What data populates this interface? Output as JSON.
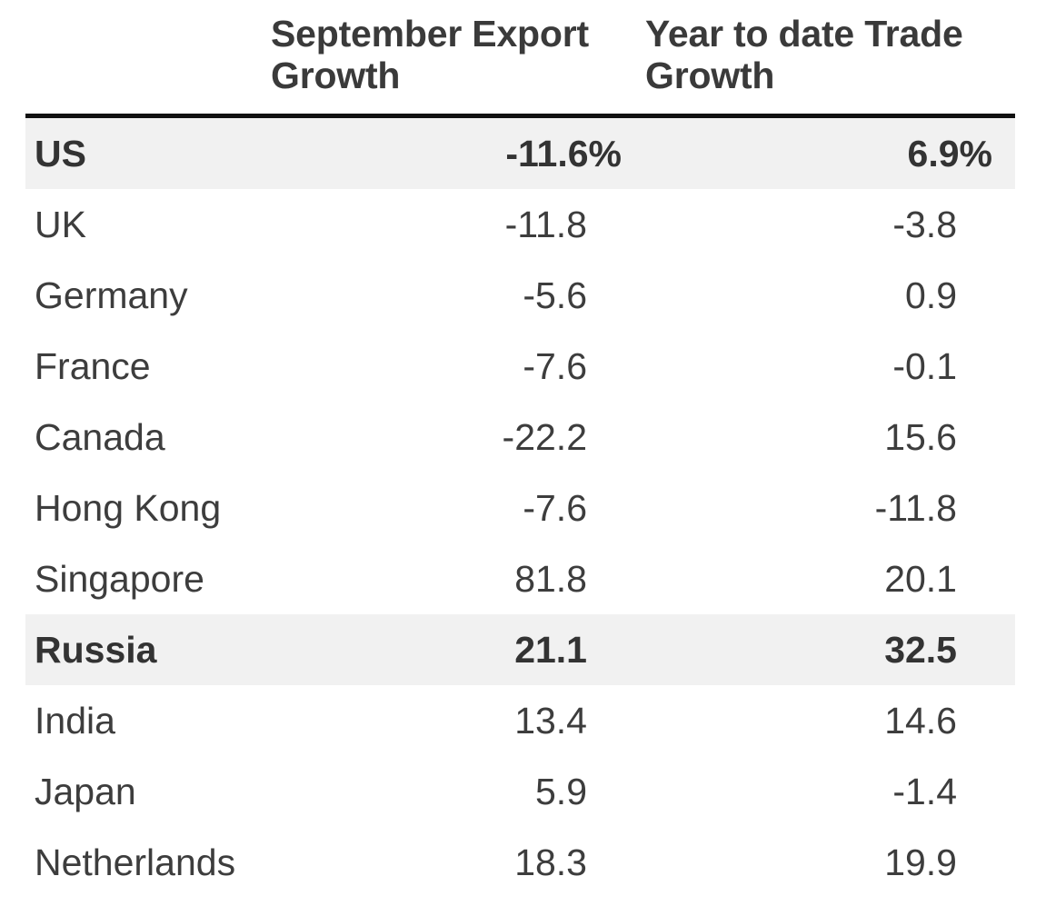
{
  "chart_data": {
    "type": "table",
    "columns": [
      "",
      "September Export Growth",
      "Year to date Trade Growth"
    ],
    "header": {
      "col1_line1": "September Export",
      "col1_line2": "Growth",
      "col2_line1": "Year to date Trade",
      "col2_line2": "Growth"
    },
    "rows": [
      {
        "country": "US",
        "sep": "-11.6%",
        "ytd": "6.9%",
        "highlight": true,
        "bold": true
      },
      {
        "country": "UK",
        "sep": "-11.8",
        "ytd": "-3.8",
        "highlight": false,
        "bold": false
      },
      {
        "country": "Germany",
        "sep": "-5.6",
        "ytd": "0.9",
        "highlight": false,
        "bold": false
      },
      {
        "country": "France",
        "sep": "-7.6",
        "ytd": "-0.1",
        "highlight": false,
        "bold": false
      },
      {
        "country": "Canada",
        "sep": "-22.2",
        "ytd": "15.6",
        "highlight": false,
        "bold": false
      },
      {
        "country": "Hong Kong",
        "sep": "-7.6",
        "ytd": "-11.8",
        "highlight": false,
        "bold": false
      },
      {
        "country": "Singapore",
        "sep": "81.8",
        "ytd": "20.1",
        "highlight": false,
        "bold": false
      },
      {
        "country": "Russia",
        "sep": "21.1",
        "ytd": "32.5",
        "highlight": true,
        "bold": true
      },
      {
        "country": "India",
        "sep": "13.4",
        "ytd": "14.6",
        "highlight": false,
        "bold": false
      },
      {
        "country": "Japan",
        "sep": "5.9",
        "ytd": "-1.4",
        "highlight": false,
        "bold": false
      },
      {
        "country": "Netherlands",
        "sep": "18.3",
        "ytd": "19.9",
        "highlight": false,
        "bold": false
      }
    ],
    "colors": {
      "highlight_row": "#f1f1f1",
      "header_rule": "#111111",
      "text": "#3d3d3d"
    }
  }
}
